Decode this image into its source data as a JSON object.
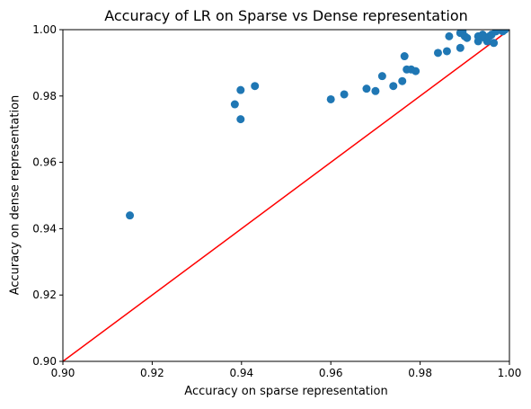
{
  "chart_data": {
    "type": "scatter",
    "title": "Accuracy of LR on Sparse vs Dense representation",
    "xlabel": "Accuracy on sparse representation",
    "ylabel": "Accuracy on dense representation",
    "xlim": [
      0.9,
      1.0
    ],
    "ylim": [
      0.9,
      1.0
    ],
    "xticks": [
      "0.90",
      "0.92",
      "0.94",
      "0.96",
      "0.98",
      "1.00"
    ],
    "yticks": [
      "0.90",
      "0.92",
      "0.94",
      "0.96",
      "0.98",
      "1.00"
    ],
    "grid": false,
    "point_color": "#1f77b4",
    "line_color": "#ff0000",
    "reference_line": {
      "x": [
        0.9,
        1.0
      ],
      "y": [
        0.9,
        1.0
      ]
    },
    "points": [
      {
        "x": 0.915,
        "y": 0.944
      },
      {
        "x": 0.9385,
        "y": 0.9775
      },
      {
        "x": 0.9398,
        "y": 0.9818
      },
      {
        "x": 0.9398,
        "y": 0.973
      },
      {
        "x": 0.943,
        "y": 0.983
      },
      {
        "x": 0.96,
        "y": 0.979
      },
      {
        "x": 0.963,
        "y": 0.9805
      },
      {
        "x": 0.968,
        "y": 0.9822
      },
      {
        "x": 0.97,
        "y": 0.9815
      },
      {
        "x": 0.9715,
        "y": 0.986
      },
      {
        "x": 0.974,
        "y": 0.983
      },
      {
        "x": 0.976,
        "y": 0.9845
      },
      {
        "x": 0.9765,
        "y": 0.992
      },
      {
        "x": 0.977,
        "y": 0.988
      },
      {
        "x": 0.978,
        "y": 0.988
      },
      {
        "x": 0.979,
        "y": 0.9875
      },
      {
        "x": 0.984,
        "y": 0.993
      },
      {
        "x": 0.986,
        "y": 0.9935
      },
      {
        "x": 0.9865,
        "y": 0.998
      },
      {
        "x": 0.989,
        "y": 0.9945
      },
      {
        "x": 0.989,
        "y": 0.999
      },
      {
        "x": 0.9895,
        "y": 0.9995
      },
      {
        "x": 0.99,
        "y": 0.998
      },
      {
        "x": 0.9905,
        "y": 0.9975
      },
      {
        "x": 0.993,
        "y": 0.9965
      },
      {
        "x": 0.993,
        "y": 0.998
      },
      {
        "x": 0.994,
        "y": 0.9985
      },
      {
        "x": 0.9945,
        "y": 0.9975
      },
      {
        "x": 0.995,
        "y": 0.9965
      },
      {
        "x": 0.9955,
        "y": 0.998
      },
      {
        "x": 0.996,
        "y": 0.9985
      },
      {
        "x": 0.9965,
        "y": 0.996
      },
      {
        "x": 0.997,
        "y": 0.9995
      },
      {
        "x": 0.9975,
        "y": 1.0
      },
      {
        "x": 0.9985,
        "y": 0.9995
      },
      {
        "x": 0.999,
        "y": 1.0
      }
    ]
  }
}
